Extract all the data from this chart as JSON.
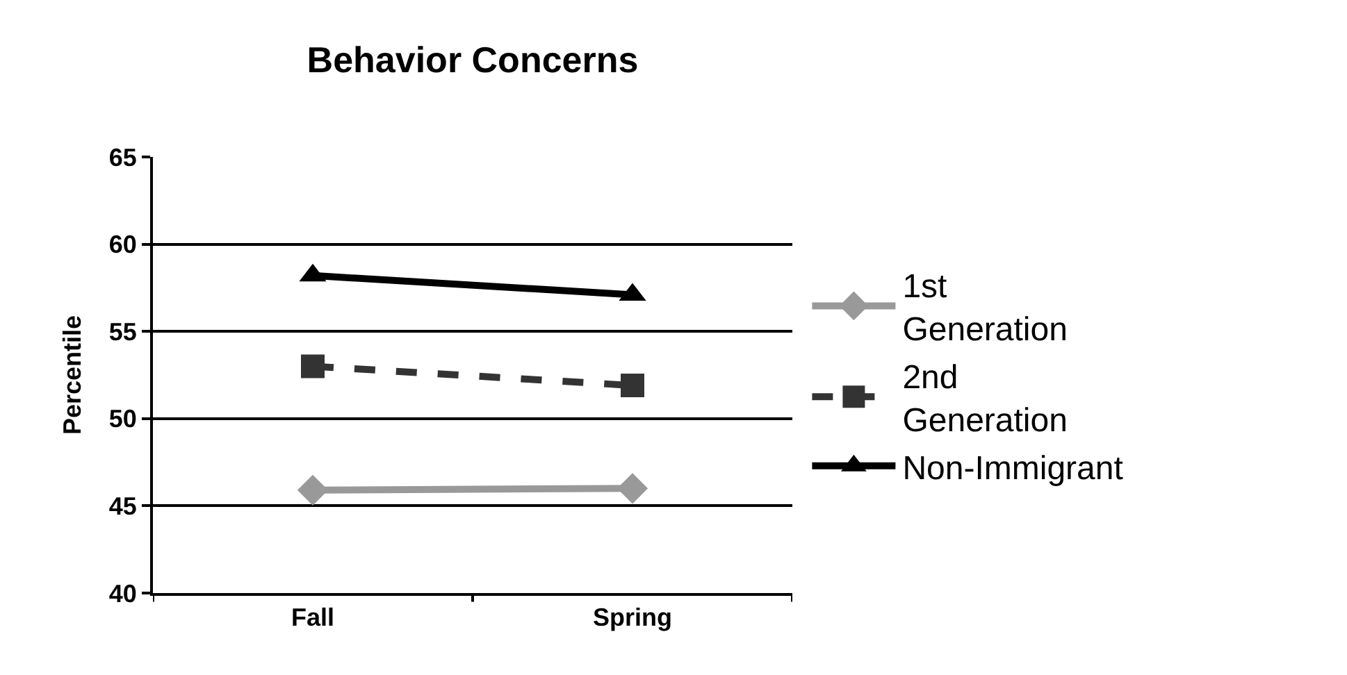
{
  "chart_data": {
    "type": "line",
    "title": "Behavior Concerns",
    "ylabel": "Percentile",
    "categories": [
      "Fall",
      "Spring"
    ],
    "series": [
      {
        "name": "1st Generation",
        "color": "#999999",
        "marker": "diamond",
        "line_style": "solid",
        "values": [
          45.9,
          46.0
        ]
      },
      {
        "name": "2nd Generation",
        "color": "#333333",
        "marker": "square",
        "line_style": "dashed",
        "values": [
          53.0,
          51.9
        ]
      },
      {
        "name": "Non-Immigrant",
        "color": "#000000",
        "marker": "triangle",
        "line_style": "solid",
        "values": [
          58.2,
          57.1
        ]
      }
    ],
    "ylim": [
      40,
      65
    ],
    "yticks": [
      40,
      45,
      50,
      55,
      60,
      65
    ],
    "grid": "y",
    "legend": "right"
  }
}
